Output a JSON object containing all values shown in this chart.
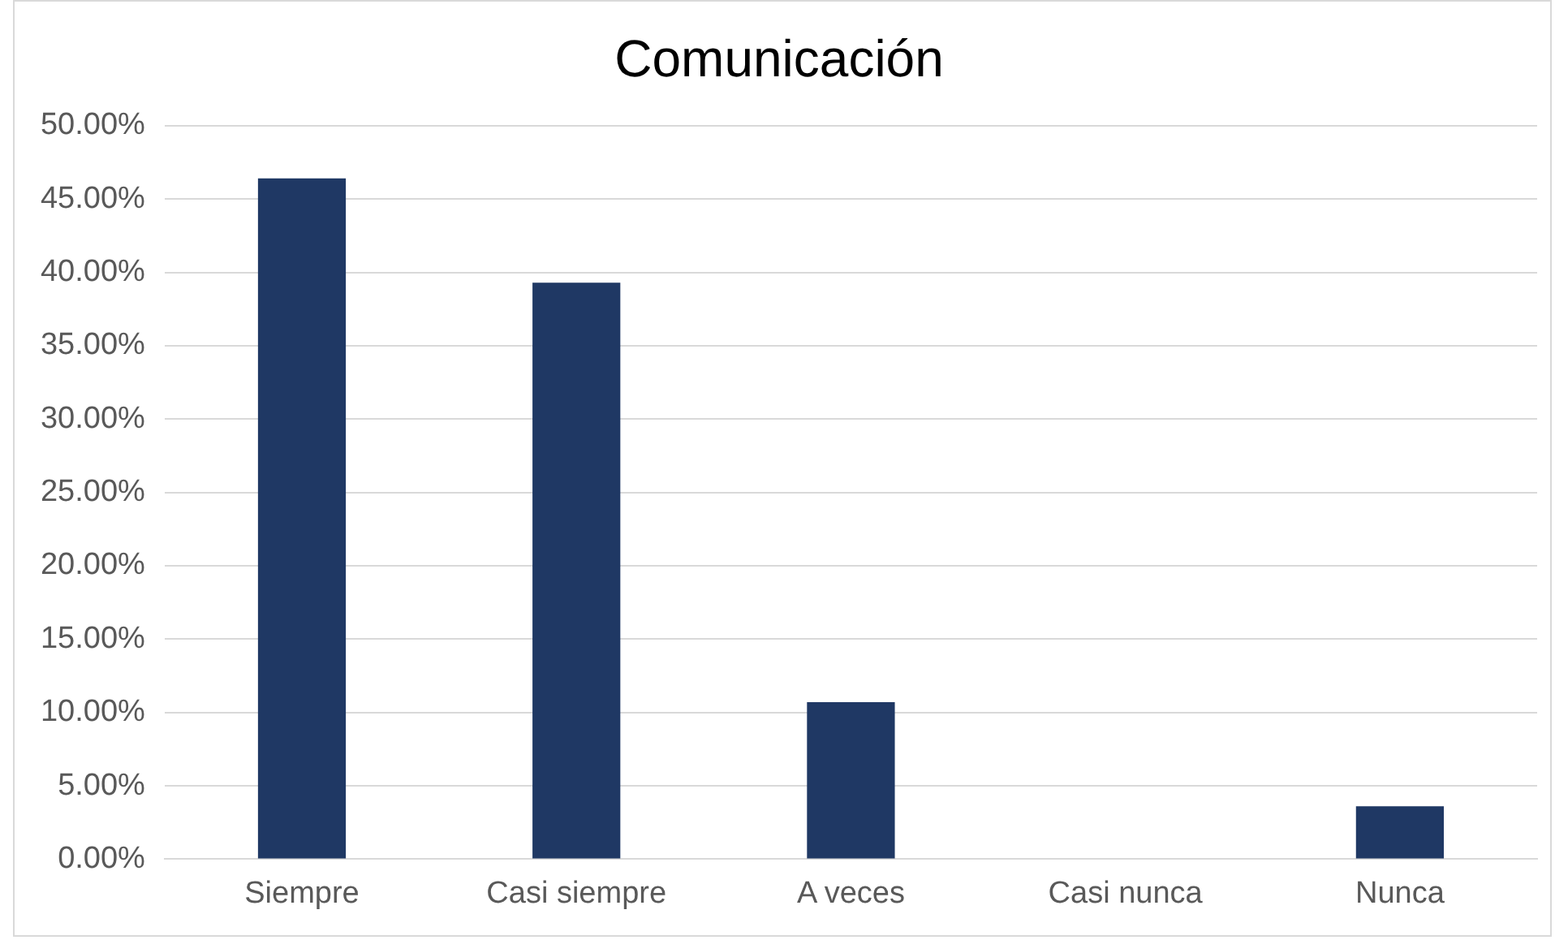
{
  "chart_data": {
    "type": "bar",
    "title": "Comunicación",
    "categories": [
      "Siempre",
      "Casi siempre",
      "A veces",
      "Casi nunca",
      "Nunca"
    ],
    "values": [
      46.4,
      39.3,
      10.7,
      0,
      3.6
    ],
    "color": "#1f3864",
    "ylim": [
      0,
      50
    ],
    "yticks": [
      {
        "value": 0,
        "label": "0.00%"
      },
      {
        "value": 5,
        "label": "5.00%"
      },
      {
        "value": 10,
        "label": "10.00%"
      },
      {
        "value": 15,
        "label": "15.00%"
      },
      {
        "value": 20,
        "label": "20.00%"
      },
      {
        "value": 25,
        "label": "25.00%"
      },
      {
        "value": 30,
        "label": "30.00%"
      },
      {
        "value": 35,
        "label": "35.00%"
      },
      {
        "value": 40,
        "label": "40.00%"
      },
      {
        "value": 45,
        "label": "45.00%"
      },
      {
        "value": 50,
        "label": "50.00%"
      }
    ],
    "grid": "y"
  }
}
